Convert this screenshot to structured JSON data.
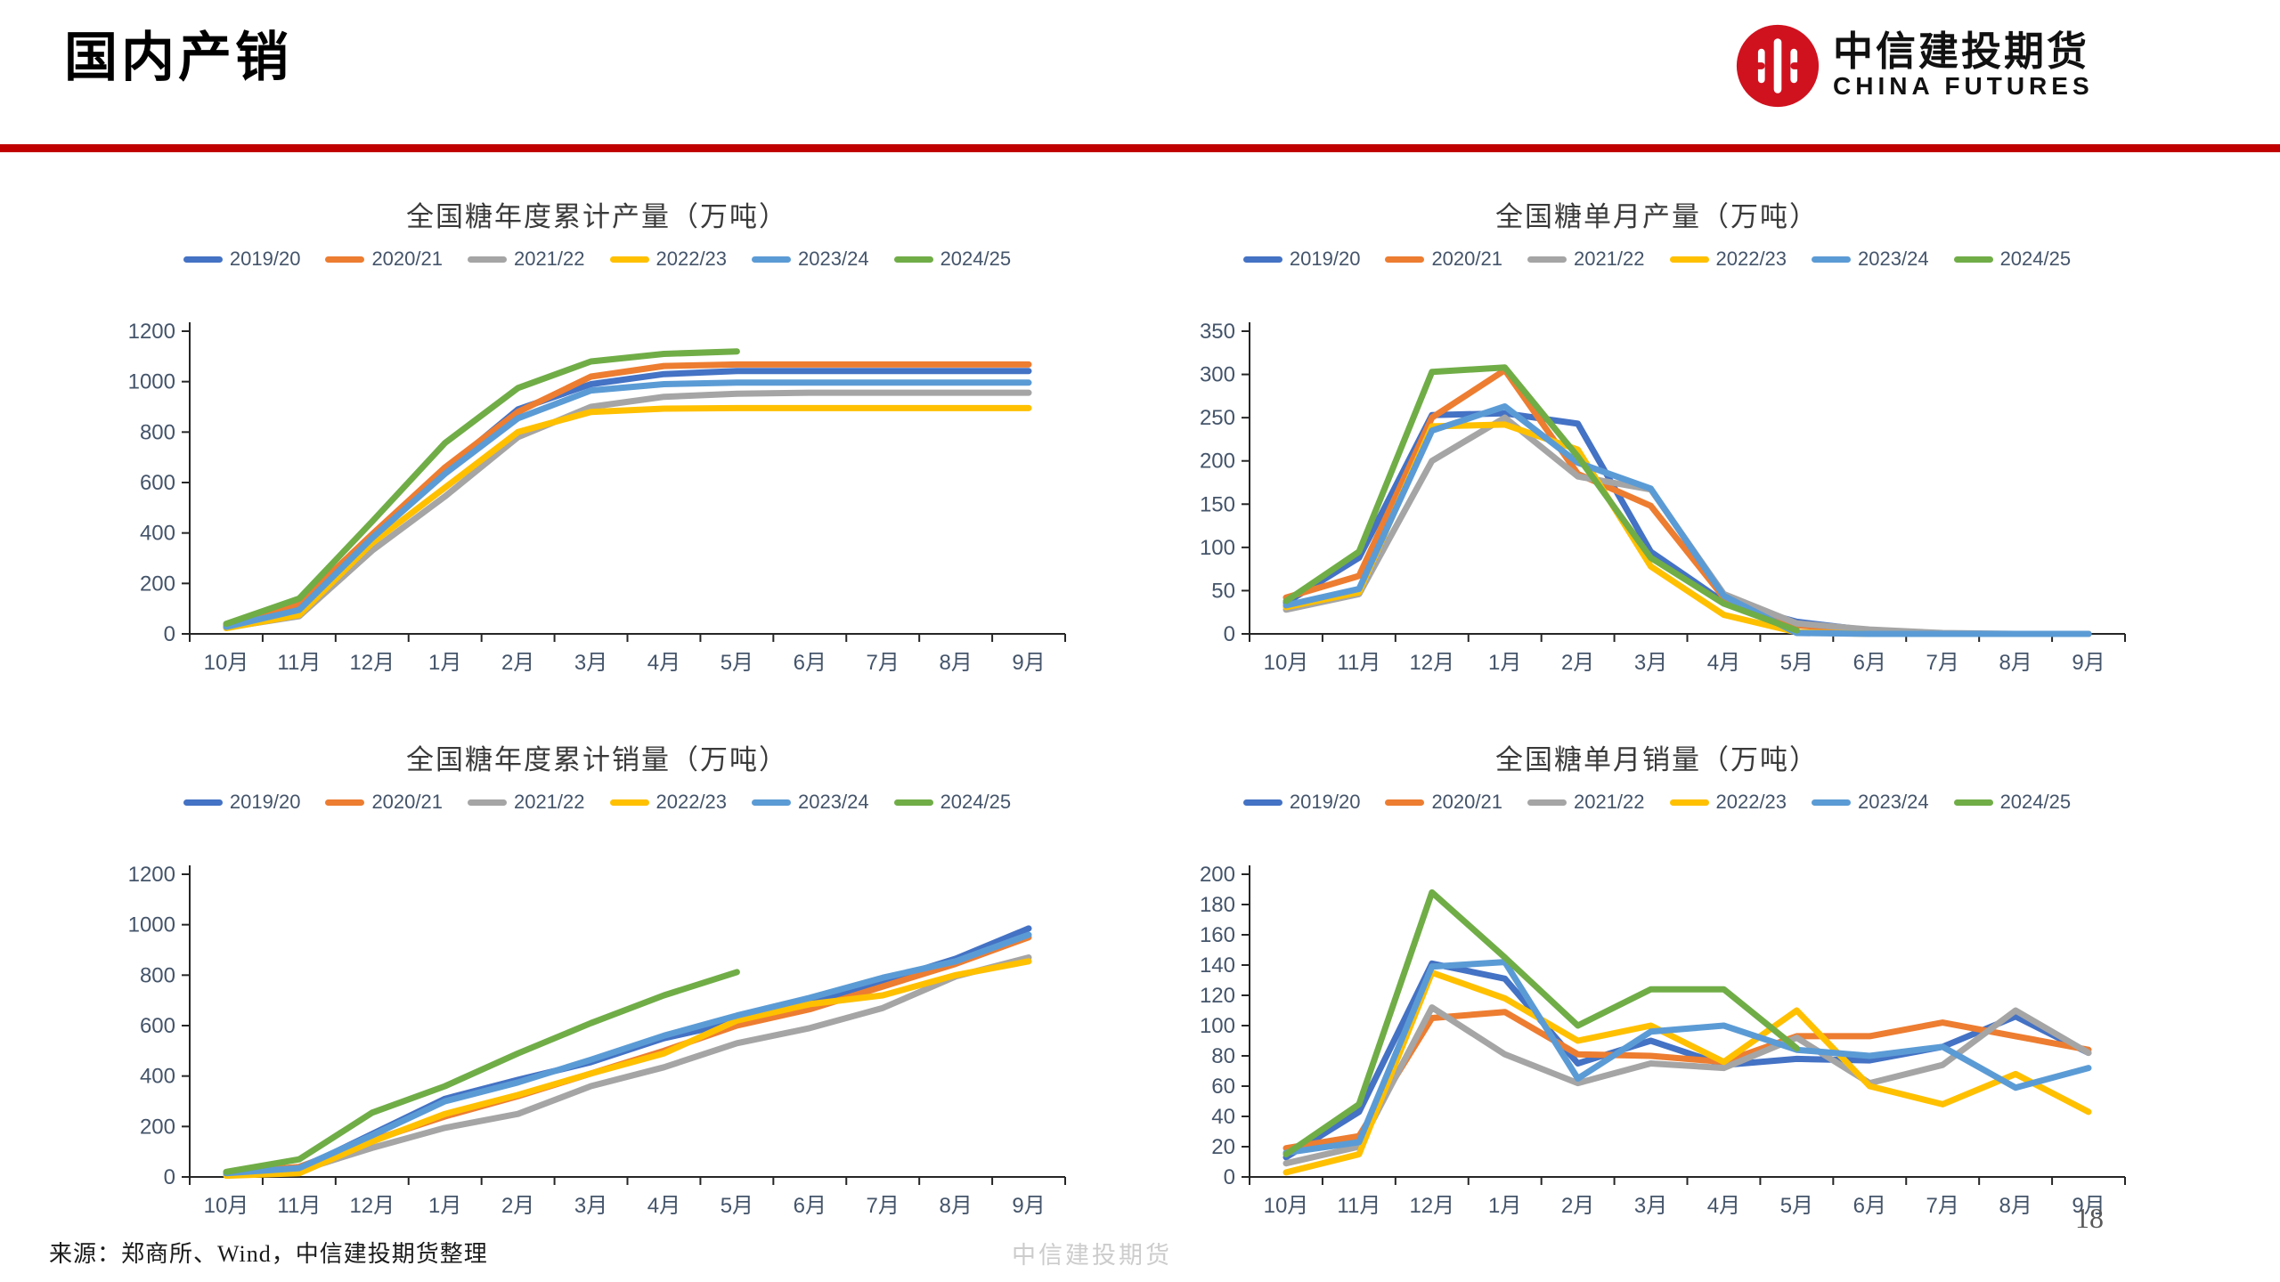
{
  "page": {
    "title": "国内产销",
    "logo": {
      "zh": "中信建投期货",
      "en": "CHINA FUTURES"
    },
    "footer": {
      "source": "来源：郑商所、Wind，中信建投期货整理",
      "watermark": "中信建投期货",
      "page": "18"
    },
    "palette": {
      "accent_red": "#C00000",
      "logo_red": "#D0121F",
      "axis_text": "#44546A",
      "axis_line": "#262626",
      "title_text": "#3A3A3A",
      "watermark_gray": "#CCCCCC"
    }
  },
  "chart_data": [
    {
      "type": "line",
      "title": "全国糖年度累计产量（万吨）",
      "categories": [
        "10月",
        "11月",
        "12月",
        "1月",
        "2月",
        "3月",
        "4月",
        "5月",
        "6月",
        "7月",
        "8月",
        "9月"
      ],
      "ylim": [
        0,
        1200
      ],
      "ytick": 200,
      "grid": false,
      "legend_position": "top",
      "series": [
        {
          "name": "2019/20",
          "color": "#4472C4",
          "values": [
            30,
            105,
            390,
            650,
            890,
            990,
            1030,
            1042,
            1042,
            1042,
            1042,
            1042
          ]
        },
        {
          "name": "2020/21",
          "color": "#ED7D31",
          "values": [
            35,
            120,
            395,
            660,
            880,
            1020,
            1062,
            1068,
            1068,
            1068,
            1068,
            1068
          ]
        },
        {
          "name": "2021/22",
          "color": "#A5A5A5",
          "values": [
            25,
            70,
            330,
            545,
            780,
            900,
            940,
            952,
            956,
            956,
            956,
            956
          ]
        },
        {
          "name": "2022/23",
          "color": "#FFC000",
          "values": [
            23,
            75,
            360,
            580,
            800,
            880,
            893,
            895,
            895,
            895,
            895,
            895
          ]
        },
        {
          "name": "2023/24",
          "color": "#5B9BD5",
          "values": [
            28,
            95,
            380,
            635,
            855,
            965,
            990,
            996,
            996,
            996,
            996,
            996
          ]
        },
        {
          "name": "2024/25",
          "color": "#70AD47",
          "values": [
            40,
            140,
            445,
            757,
            975,
            1080,
            1110,
            1120,
            null,
            null,
            null,
            null
          ]
        }
      ]
    },
    {
      "type": "line",
      "title": "全国糖单月产量（万吨）",
      "categories": [
        "10月",
        "11月",
        "12月",
        "1月",
        "2月",
        "3月",
        "4月",
        "5月",
        "6月",
        "7月",
        "8月",
        "9月"
      ],
      "ylim": [
        0,
        350
      ],
      "ytick": 50,
      "grid": false,
      "legend_position": "top",
      "series": [
        {
          "name": "2019/20",
          "color": "#4472C4",
          "values": [
            36,
            88,
            253,
            255,
            243,
            95,
            37,
            14,
            4,
            0,
            0,
            0
          ]
        },
        {
          "name": "2020/21",
          "color": "#ED7D31",
          "values": [
            42,
            67,
            250,
            305,
            185,
            148,
            42,
            10,
            3,
            0,
            0,
            0
          ]
        },
        {
          "name": "2021/22",
          "color": "#A5A5A5",
          "values": [
            28,
            46,
            200,
            250,
            182,
            167,
            46,
            12,
            5,
            1,
            0,
            0
          ]
        },
        {
          "name": "2022/23",
          "color": "#FFC000",
          "values": [
            31,
            48,
            240,
            242,
            213,
            78,
            22,
            2,
            0,
            0,
            0,
            0
          ]
        },
        {
          "name": "2023/24",
          "color": "#5B9BD5",
          "values": [
            33,
            52,
            235,
            263,
            198,
            168,
            44,
            1,
            0,
            0,
            0,
            0
          ]
        },
        {
          "name": "2024/25",
          "color": "#70AD47",
          "values": [
            38,
            95,
            303,
            308,
            205,
            88,
            35,
            4,
            null,
            null,
            null,
            null
          ]
        }
      ]
    },
    {
      "type": "line",
      "title": "全国糖年度累计销量（万吨）",
      "categories": [
        "10月",
        "11月",
        "12月",
        "1月",
        "2月",
        "3月",
        "4月",
        "5月",
        "6月",
        "7月",
        "8月",
        "9月"
      ],
      "ylim": [
        0,
        1200
      ],
      "ytick": 200,
      "grid": false,
      "legend_position": "top",
      "series": [
        {
          "name": "2019/20",
          "color": "#4472C4",
          "values": [
            15,
            30,
            170,
            310,
            385,
            455,
            550,
            615,
            690,
            775,
            865,
            985
          ]
        },
        {
          "name": "2020/21",
          "color": "#ED7D31",
          "values": [
            18,
            40,
            145,
            240,
            320,
            410,
            500,
            600,
            665,
            755,
            845,
            950
          ]
        },
        {
          "name": "2021/22",
          "color": "#A5A5A5",
          "values": [
            10,
            25,
            115,
            195,
            250,
            360,
            435,
            530,
            590,
            670,
            795,
            870
          ]
        },
        {
          "name": "2022/23",
          "color": "#FFC000",
          "values": [
            5,
            15,
            140,
            250,
            325,
            410,
            490,
            620,
            685,
            720,
            800,
            855
          ]
        },
        {
          "name": "2023/24",
          "color": "#5B9BD5",
          "values": [
            15,
            35,
            165,
            300,
            375,
            465,
            560,
            640,
            710,
            790,
            855,
            960
          ]
        },
        {
          "name": "2024/25",
          "color": "#70AD47",
          "values": [
            20,
            70,
            255,
            360,
            490,
            610,
            720,
            812,
            null,
            null,
            null,
            null
          ]
        }
      ]
    },
    {
      "type": "line",
      "title": "全国糖单月销量（万吨）",
      "categories": [
        "10月",
        "11月",
        "12月",
        "1月",
        "2月",
        "3月",
        "4月",
        "5月",
        "6月",
        "7月",
        "8月",
        "9月"
      ],
      "ylim": [
        0,
        200
      ],
      "ytick": 20,
      "grid": false,
      "legend_position": "top",
      "series": [
        {
          "name": "2019/20",
          "color": "#4472C4",
          "values": [
            13,
            43,
            141,
            131,
            75,
            90,
            74,
            78,
            77,
            86,
            106,
            82
          ]
        },
        {
          "name": "2020/21",
          "color": "#ED7D31",
          "values": [
            19,
            27,
            105,
            109,
            81,
            80,
            76,
            93,
            93,
            102,
            93,
            84
          ]
        },
        {
          "name": "2021/22",
          "color": "#A5A5A5",
          "values": [
            9,
            20,
            112,
            81,
            62,
            75,
            72,
            92,
            62,
            74,
            110,
            82
          ]
        },
        {
          "name": "2022/23",
          "color": "#FFC000",
          "values": [
            3,
            15,
            135,
            118,
            90,
            100,
            76,
            110,
            60,
            48,
            68,
            43
          ]
        },
        {
          "name": "2023/24",
          "color": "#5B9BD5",
          "values": [
            16,
            23,
            139,
            142,
            65,
            96,
            100,
            84,
            80,
            86,
            59,
            72
          ]
        },
        {
          "name": "2024/25",
          "color": "#70AD47",
          "values": [
            15,
            48,
            188,
            145,
            100,
            124,
            124,
            85,
            null,
            null,
            null,
            null
          ]
        }
      ]
    }
  ]
}
